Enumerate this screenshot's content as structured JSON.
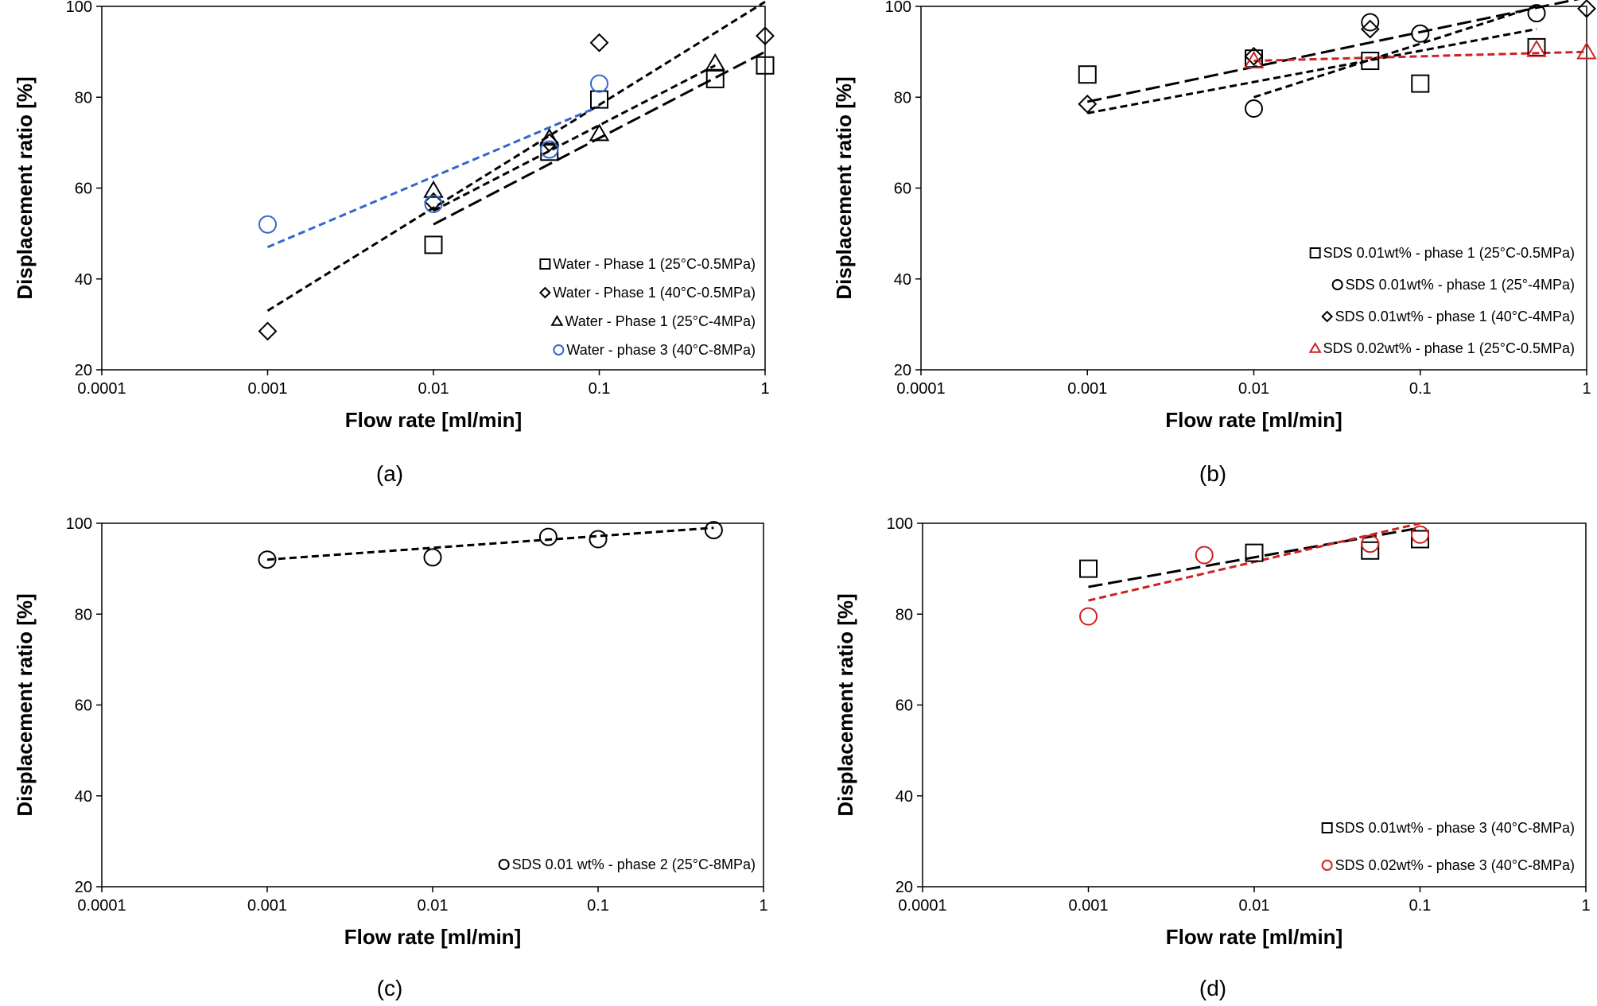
{
  "chart_data": [
    {
      "type": "scatter",
      "panel_label": "(a)",
      "xlabel": "Flow rate [ml/min]",
      "ylabel": "Displacement ratio [%]",
      "x_scale": "log",
      "xlim": [
        0.0001,
        1
      ],
      "ylim": [
        20,
        100
      ],
      "x_ticks": [
        0.0001,
        0.001,
        0.01,
        0.1,
        1
      ],
      "x_tick_labels": [
        "0.0001",
        "0.001",
        "0.01",
        "0.1",
        "1"
      ],
      "y_ticks": [
        20,
        40,
        60,
        80,
        100
      ],
      "y_tick_labels": [
        "20",
        "40",
        "60",
        "80",
        "100"
      ],
      "grid": false,
      "legend_position": "bottom-right",
      "series": [
        {
          "name": "Water - Phase 1 (25°C-0.5MPa)",
          "marker": "square",
          "color": "#000000",
          "x": [
            0.01,
            0.05,
            0.1,
            0.5,
            1
          ],
          "y": [
            47.5,
            68,
            79.5,
            84,
            87
          ],
          "trend": {
            "x": [
              0.01,
              1
            ],
            "y": [
              52,
              90
            ],
            "dash": "long",
            "color": "#000000"
          }
        },
        {
          "name": "Water - Phase 1 (40°C-0.5MPa)",
          "marker": "diamond",
          "color": "#000000",
          "x": [
            0.001,
            0.01,
            0.05,
            0.1,
            1
          ],
          "y": [
            28.5,
            57,
            70,
            92,
            93.5
          ],
          "trend": {
            "x": [
              0.001,
              1
            ],
            "y": [
              33,
              101
            ],
            "dash": "short",
            "color": "#000000"
          }
        },
        {
          "name": "Water - Phase 1 (25°C-4MPa)",
          "marker": "triangle",
          "color": "#000000",
          "x": [
            0.01,
            0.05,
            0.1,
            0.5
          ],
          "y": [
            59.5,
            71,
            72,
            87.5
          ],
          "trend": {
            "x": [
              0.01,
              0.5
            ],
            "y": [
              55,
              87
            ],
            "dash": "short",
            "color": "#000000"
          }
        },
        {
          "name": "Water - phase 3 (40°C-8MPa)",
          "marker": "circle",
          "color": "#3366cc",
          "x": [
            0.001,
            0.01,
            0.05,
            0.1
          ],
          "y": [
            52,
            56.5,
            68.5,
            83
          ],
          "trend": {
            "x": [
              0.001,
              0.1
            ],
            "y": [
              47,
              78
            ],
            "dash": "short",
            "color": "#3366cc"
          }
        }
      ]
    },
    {
      "type": "scatter",
      "panel_label": "(b)",
      "xlabel": "Flow rate [ml/min]",
      "ylabel": "Displacement ratio [%]",
      "x_scale": "log",
      "xlim": [
        0.0001,
        1
      ],
      "ylim": [
        20,
        100
      ],
      "x_ticks": [
        0.0001,
        0.001,
        0.01,
        0.1,
        1
      ],
      "x_tick_labels": [
        "0.0001",
        "0.001",
        "0.01",
        "0.1",
        "1"
      ],
      "y_ticks": [
        20,
        40,
        60,
        80,
        100
      ],
      "y_tick_labels": [
        "20",
        "40",
        "60",
        "80",
        "100"
      ],
      "grid": false,
      "legend_position": "bottom-right",
      "series": [
        {
          "name": "SDS 0.01wt% - phase 1 (25°C-0.5MPa)",
          "marker": "square",
          "color": "#000000",
          "x": [
            0.001,
            0.01,
            0.05,
            0.1,
            0.5
          ],
          "y": [
            85,
            88.5,
            88,
            83,
            91
          ],
          "trend": {
            "x": [
              0.001,
              1
            ],
            "y": [
              79,
              102
            ],
            "dash": "long",
            "color": "#000000"
          }
        },
        {
          "name": "SDS 0.01wt% - phase 1 (25°-4MPa)",
          "marker": "circle",
          "color": "#000000",
          "x": [
            0.01,
            0.05,
            0.1,
            0.5
          ],
          "y": [
            77.5,
            96.5,
            94,
            98.5
          ],
          "trend": {
            "x": [
              0.01,
              0.5
            ],
            "y": [
              80,
              100
            ],
            "dash": "short",
            "color": "#000000"
          }
        },
        {
          "name": "SDS 0.01wt% - phase 1 (40°C-4MPa)",
          "marker": "diamond",
          "color": "#000000",
          "x": [
            0.001,
            0.01,
            0.05,
            1
          ],
          "y": [
            78.5,
            89,
            95,
            99.5
          ],
          "trend": {
            "x": [
              0.001,
              0.5
            ],
            "y": [
              76.5,
              95
            ],
            "dash": "short",
            "color": "#000000"
          }
        },
        {
          "name": "SDS 0.02wt% - phase 1 (25°C-0.5MPa)",
          "marker": "triangle",
          "color": "#cc2222",
          "x": [
            0.01,
            0.5,
            1
          ],
          "y": [
            88,
            90.5,
            90
          ],
          "trend": {
            "x": [
              0.01,
              1
            ],
            "y": [
              88,
              90
            ],
            "dash": "short",
            "color": "#cc2222"
          }
        }
      ]
    },
    {
      "type": "scatter",
      "panel_label": "(c)",
      "xlabel": "Flow rate [ml/min]",
      "ylabel": "Displacement ratio [%]",
      "x_scale": "log",
      "xlim": [
        0.0001,
        1
      ],
      "ylim": [
        20,
        100
      ],
      "x_ticks": [
        0.0001,
        0.001,
        0.01,
        0.1,
        1
      ],
      "x_tick_labels": [
        "0.0001",
        "0.001",
        "0.01",
        "0.1",
        "1"
      ],
      "y_ticks": [
        20,
        40,
        60,
        80,
        100
      ],
      "y_tick_labels": [
        "20",
        "40",
        "60",
        "80",
        "100"
      ],
      "grid": false,
      "legend_position": "bottom-right",
      "series": [
        {
          "name": "SDS 0.01 wt% - phase 2 (25°C-8MPa)",
          "marker": "circle",
          "color": "#000000",
          "x": [
            0.001,
            0.01,
            0.05,
            0.1,
            0.5
          ],
          "y": [
            92,
            92.5,
            97,
            96.5,
            98.5
          ],
          "trend": {
            "x": [
              0.001,
              0.5
            ],
            "y": [
              92,
              99
            ],
            "dash": "short",
            "color": "#000000"
          }
        }
      ]
    },
    {
      "type": "scatter",
      "panel_label": "(d)",
      "xlabel": "Flow rate [ml/min]",
      "ylabel": "Displacement ratio [%]",
      "x_scale": "log",
      "xlim": [
        0.0001,
        1
      ],
      "ylim": [
        20,
        100
      ],
      "x_ticks": [
        0.0001,
        0.001,
        0.01,
        0.1,
        1
      ],
      "x_tick_labels": [
        "0.0001",
        "0.001",
        "0.01",
        "0.1",
        "1"
      ],
      "y_ticks": [
        20,
        40,
        60,
        80,
        100
      ],
      "y_tick_labels": [
        "20",
        "40",
        "60",
        "80",
        "100"
      ],
      "grid": false,
      "legend_position": "bottom-right",
      "series": [
        {
          "name": "SDS 0.01wt% - phase 3 (40°C-8MPa)",
          "marker": "square",
          "color": "#000000",
          "x": [
            0.001,
            0.01,
            0.05,
            0.1
          ],
          "y": [
            90,
            93.5,
            94,
            96.5
          ],
          "trend": {
            "x": [
              0.001,
              0.1
            ],
            "y": [
              86,
              99
            ],
            "dash": "long",
            "color": "#000000"
          }
        },
        {
          "name": "SDS 0.02wt% - phase 3 (40°C-8MPa)",
          "marker": "circle",
          "color": "#cc2222",
          "x": [
            0.001,
            0.005,
            0.05,
            0.1
          ],
          "y": [
            79.5,
            93,
            95.5,
            97.5
          ],
          "trend": {
            "x": [
              0.001,
              0.1
            ],
            "y": [
              83,
              100
            ],
            "dash": "short",
            "color": "#cc2222"
          }
        }
      ]
    }
  ]
}
